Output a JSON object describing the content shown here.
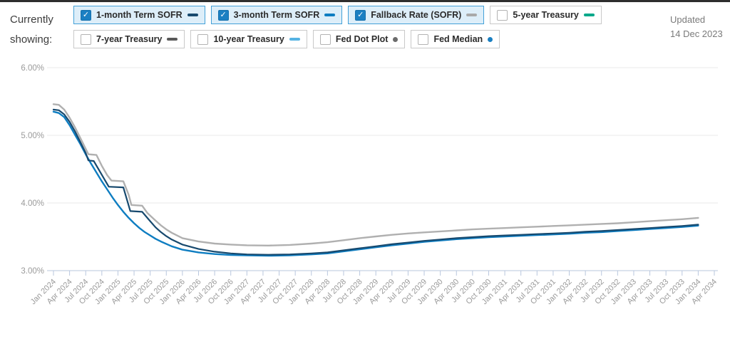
{
  "header": {
    "currently_showing_label": "Currently showing:",
    "updated_label": "Updated",
    "updated_date": "14 Dec 2023",
    "check_glyph": "✓"
  },
  "legend": {
    "items": [
      {
        "label": "1-month Term SOFR",
        "checked": true,
        "marker": "dash",
        "color": "#17496e"
      },
      {
        "label": "3-month Term SOFR",
        "checked": true,
        "marker": "dash",
        "color": "#0e7dc1"
      },
      {
        "label": "Fallback Rate (SOFR)",
        "checked": true,
        "marker": "dash",
        "color": "#a9a9a9"
      },
      {
        "label": "5-year Treasury",
        "checked": false,
        "marker": "dash",
        "color": "#00a88a"
      },
      {
        "label": "7-year Treasury",
        "checked": false,
        "marker": "dash",
        "color": "#595959"
      },
      {
        "label": "10-year Treasury",
        "checked": false,
        "marker": "dash",
        "color": "#55b3e3"
      },
      {
        "label": "Fed Dot Plot",
        "checked": false,
        "marker": "dot",
        "color": "#6b6b6b"
      },
      {
        "label": "Fed Median",
        "checked": false,
        "marker": "dot",
        "color": "#1a7fc1"
      }
    ]
  },
  "chart_data": {
    "type": "line",
    "x_unit": "months since Jan 2024",
    "x_tick_labels": [
      "Jan 2024",
      "Apr 2024",
      "Jul 2024",
      "Oct 2024",
      "Jan 2025",
      "Apr 2025",
      "Jul 2025",
      "Oct 2025",
      "Jan 2026",
      "Apr 2026",
      "Jul 2026",
      "Oct 2026",
      "Jan 2027",
      "Apr 2027",
      "Jul 2027",
      "Oct 2027",
      "Jan 2028",
      "Apr 2028",
      "Jul 2028",
      "Oct 2028",
      "Jan 2029",
      "Apr 2029",
      "Jul 2029",
      "Oct 2029",
      "Jan 2030",
      "Apr 2030",
      "Jul 2030",
      "Oct 2030",
      "Jan 2031",
      "Apr 2031",
      "Jul 2031",
      "Oct 2031",
      "Jan 2032",
      "Apr 2032",
      "Jul 2032",
      "Oct 2032",
      "Jan 2033",
      "Apr 2033",
      "Jul 2033",
      "Oct 2033",
      "Jan 2034",
      "Apr 2034"
    ],
    "y_axis": {
      "tick_labels": [
        "6.00%",
        "5.00%",
        "4.00%",
        "3.00%"
      ],
      "tick_values": [
        6,
        5,
        4,
        3
      ],
      "shown_range": [
        3,
        6
      ]
    },
    "grid": true,
    "legend_position": "top",
    "series": [
      {
        "name": "Fallback Rate (SOFR)",
        "color": "#b0b0b0",
        "width": 2.4,
        "points": [
          [
            0,
            5.46
          ],
          [
            1,
            5.45
          ],
          [
            2,
            5.38
          ],
          [
            3,
            5.26
          ],
          [
            4,
            5.12
          ],
          [
            5,
            4.96
          ],
          [
            6,
            4.8
          ],
          [
            6.5,
            4.72
          ],
          [
            8,
            4.71
          ],
          [
            9,
            4.55
          ],
          [
            10,
            4.41
          ],
          [
            10.8,
            4.33
          ],
          [
            13,
            4.32
          ],
          [
            14,
            4.12
          ],
          [
            14.5,
            3.97
          ],
          [
            16.5,
            3.96
          ],
          [
            17.5,
            3.85
          ],
          [
            19,
            3.74
          ],
          [
            20,
            3.67
          ],
          [
            21,
            3.61
          ],
          [
            22,
            3.56
          ],
          [
            24,
            3.48
          ],
          [
            27,
            3.43
          ],
          [
            30,
            3.4
          ],
          [
            33,
            3.385
          ],
          [
            36,
            3.375
          ],
          [
            40,
            3.37
          ],
          [
            44,
            3.38
          ],
          [
            48,
            3.4
          ],
          [
            51,
            3.42
          ],
          [
            54,
            3.45
          ],
          [
            57,
            3.48
          ],
          [
            60,
            3.505
          ],
          [
            63,
            3.53
          ],
          [
            66,
            3.55
          ],
          [
            69,
            3.565
          ],
          [
            72,
            3.58
          ],
          [
            75,
            3.595
          ],
          [
            78,
            3.61
          ],
          [
            81,
            3.62
          ],
          [
            84,
            3.63
          ],
          [
            87,
            3.64
          ],
          [
            90,
            3.65
          ],
          [
            93,
            3.66
          ],
          [
            96,
            3.67
          ],
          [
            99,
            3.68
          ],
          [
            102,
            3.69
          ],
          [
            105,
            3.7
          ],
          [
            108,
            3.715
          ],
          [
            111,
            3.73
          ],
          [
            114,
            3.745
          ],
          [
            117,
            3.76
          ],
          [
            120,
            3.78
          ]
        ]
      },
      {
        "name": "3-month Term SOFR",
        "color": "#0e7dc1",
        "width": 2.4,
        "points": [
          [
            0,
            5.35
          ],
          [
            1,
            5.33
          ],
          [
            2,
            5.27
          ],
          [
            3,
            5.15
          ],
          [
            4,
            5.01
          ],
          [
            5,
            4.87
          ],
          [
            6,
            4.72
          ],
          [
            7,
            4.58
          ],
          [
            8,
            4.45
          ],
          [
            9,
            4.32
          ],
          [
            10,
            4.2
          ],
          [
            11,
            4.08
          ],
          [
            12,
            3.97
          ],
          [
            13,
            3.87
          ],
          [
            14,
            3.78
          ],
          [
            15,
            3.7
          ],
          [
            16,
            3.63
          ],
          [
            17,
            3.57
          ],
          [
            18,
            3.52
          ],
          [
            19,
            3.47
          ],
          [
            20,
            3.43
          ],
          [
            22,
            3.36
          ],
          [
            24,
            3.31
          ],
          [
            27,
            3.27
          ],
          [
            30,
            3.245
          ],
          [
            33,
            3.23
          ],
          [
            36,
            3.225
          ],
          [
            40,
            3.22
          ],
          [
            44,
            3.225
          ],
          [
            48,
            3.24
          ],
          [
            51,
            3.255
          ],
          [
            54,
            3.285
          ],
          [
            57,
            3.315
          ],
          [
            60,
            3.345
          ],
          [
            63,
            3.375
          ],
          [
            66,
            3.4
          ],
          [
            69,
            3.425
          ],
          [
            72,
            3.445
          ],
          [
            75,
            3.465
          ],
          [
            78,
            3.48
          ],
          [
            81,
            3.495
          ],
          [
            84,
            3.505
          ],
          [
            87,
            3.515
          ],
          [
            90,
            3.525
          ],
          [
            93,
            3.535
          ],
          [
            96,
            3.545
          ],
          [
            99,
            3.56
          ],
          [
            102,
            3.57
          ],
          [
            105,
            3.585
          ],
          [
            108,
            3.6
          ],
          [
            111,
            3.615
          ],
          [
            114,
            3.63
          ],
          [
            117,
            3.645
          ],
          [
            120,
            3.665
          ]
        ]
      },
      {
        "name": "1-month Term SOFR",
        "color": "#17496e",
        "width": 2.2,
        "points": [
          [
            0,
            5.38
          ],
          [
            1,
            5.37
          ],
          [
            2,
            5.31
          ],
          [
            3,
            5.2
          ],
          [
            4,
            5.06
          ],
          [
            5,
            4.9
          ],
          [
            6,
            4.74
          ],
          [
            6.5,
            4.63
          ],
          [
            7.5,
            4.62
          ],
          [
            10.3,
            4.24
          ],
          [
            13,
            4.23
          ],
          [
            14.3,
            3.88
          ],
          [
            16.5,
            3.87
          ],
          [
            18,
            3.73
          ],
          [
            19,
            3.64
          ],
          [
            20,
            3.57
          ],
          [
            21,
            3.51
          ],
          [
            22,
            3.46
          ],
          [
            24,
            3.385
          ],
          [
            27,
            3.32
          ],
          [
            30,
            3.28
          ],
          [
            33,
            3.255
          ],
          [
            36,
            3.24
          ],
          [
            40,
            3.235
          ],
          [
            44,
            3.24
          ],
          [
            48,
            3.255
          ],
          [
            51,
            3.27
          ],
          [
            54,
            3.3
          ],
          [
            57,
            3.33
          ],
          [
            60,
            3.36
          ],
          [
            63,
            3.39
          ],
          [
            66,
            3.415
          ],
          [
            69,
            3.44
          ],
          [
            72,
            3.46
          ],
          [
            75,
            3.48
          ],
          [
            78,
            3.495
          ],
          [
            81,
            3.51
          ],
          [
            84,
            3.52
          ],
          [
            87,
            3.53
          ],
          [
            90,
            3.54
          ],
          [
            93,
            3.55
          ],
          [
            96,
            3.56
          ],
          [
            99,
            3.575
          ],
          [
            102,
            3.585
          ],
          [
            105,
            3.6
          ],
          [
            108,
            3.615
          ],
          [
            111,
            3.63
          ],
          [
            114,
            3.645
          ],
          [
            117,
            3.66
          ],
          [
            120,
            3.68
          ]
        ]
      }
    ]
  }
}
